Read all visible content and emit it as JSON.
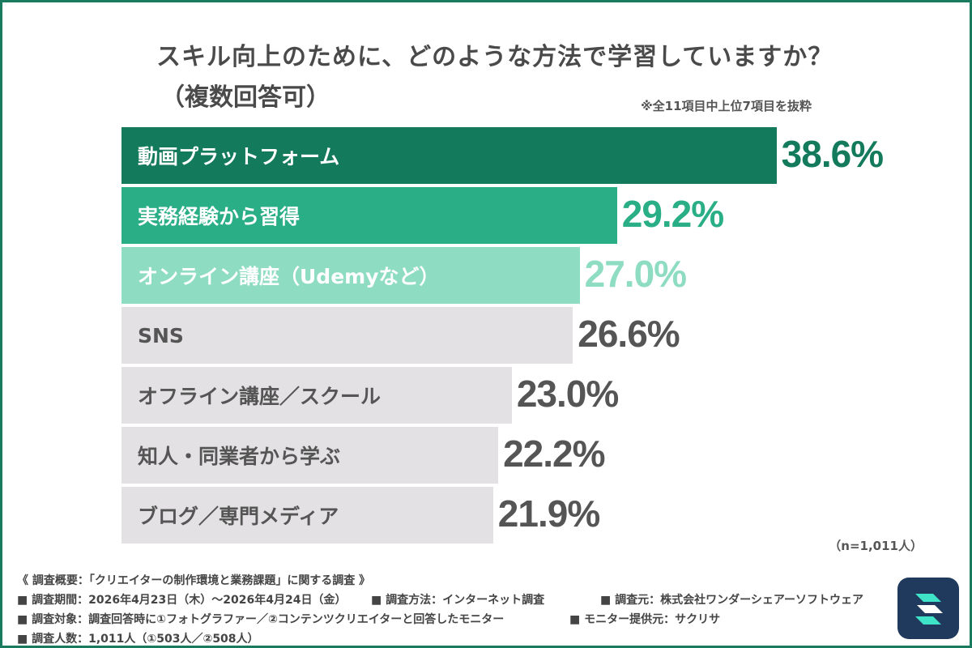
{
  "header": {
    "title": "スキル向上のために、どのような方法で学習していますか？",
    "subtitle": "（複数回答可）",
    "note": "※全11項目中上位7項目を抜粋"
  },
  "chart_data": {
    "type": "bar",
    "orientation": "horizontal",
    "categories": [
      "動画プラットフォーム",
      "実務経験から習得",
      "オンライン講座（Udemyなど）",
      "SNS",
      "オフライン講座／スクール",
      "知人・同業者から学ぶ",
      "ブログ／専門メディア"
    ],
    "values": [
      38.6,
      29.2,
      27.0,
      26.6,
      23.0,
      22.2,
      21.9
    ],
    "value_labels": [
      "38.6%",
      "29.2%",
      "27.0%",
      "26.6%",
      "23.0%",
      "22.2%",
      "21.9%"
    ],
    "unit": "%",
    "bar_colors": [
      "#147a5c",
      "#2aae86",
      "#8edcc2",
      "#e3e1e3",
      "#e3e1e3",
      "#e3e1e3",
      "#e3e1e3"
    ],
    "label_colors": [
      "#ffffff",
      "#ffffff",
      "#ffffff",
      "#555555",
      "#555555",
      "#555555",
      "#555555"
    ],
    "value_colors": [
      "#147a5c",
      "#2aae86",
      "#8edcc2",
      "#555555",
      "#555555",
      "#555555",
      "#555555"
    ],
    "grid": false,
    "legend": "none"
  },
  "sample_note": "（n=1,011人）",
  "footer": {
    "line1": "《 調査概要：「クリエイターの制作環境と業務課題」に関する調査 》",
    "method": "■ 調査方法：インターネット調査",
    "source": "■ 調査元：株式会社ワンダーシェアーソフトウェア",
    "period": "■ 調査期間：2026年4月23日（木）～2026年4月24日（金）",
    "target": "■ 調査対象：調査回答時に①フォトグラファー／②コンテンツクリエイターと回答したモニター",
    "provider": "■ モニター提供元：サクリサ",
    "count": "■ 調査人数：1,011人（①503人／②508人）"
  },
  "colors": {
    "brand": "#1a7a5e",
    "logo_bg": "#1f3a5c",
    "logo_accent": "#3ee3c8"
  },
  "icons": {
    "logo": "app-logo-icon"
  }
}
